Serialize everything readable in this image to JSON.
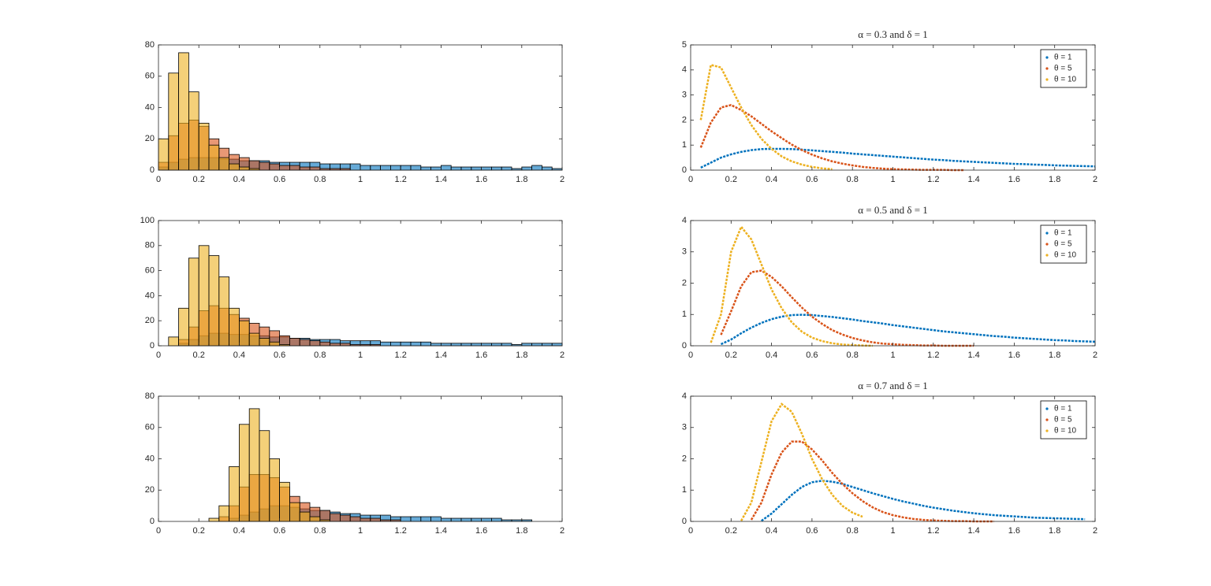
{
  "chart_data": [
    {
      "type": "histogram",
      "bins": [
        0,
        0.05,
        0.1,
        0.15,
        0.2,
        0.25,
        0.3,
        0.35,
        0.4,
        0.45,
        0.5,
        0.55,
        0.6,
        0.65,
        0.7,
        0.75,
        0.8,
        0.85,
        0.9,
        0.95,
        1,
        1.05,
        1.1,
        1.15,
        1.2,
        1.25,
        1.3,
        1.35,
        1.4,
        1.45,
        1.5,
        1.55,
        1.6,
        1.65,
        1.7,
        1.75,
        1.8,
        1.85,
        1.9,
        1.95,
        2
      ],
      "series": [
        {
          "color": "#0072bd",
          "values": [
            2,
            5,
            7,
            8,
            8,
            8,
            7,
            7,
            6,
            6,
            6,
            5,
            5,
            5,
            5,
            5,
            4,
            4,
            4,
            4,
            3,
            3,
            3,
            3,
            3,
            3,
            2,
            2,
            3,
            2,
            2,
            2,
            2,
            2,
            2,
            1,
            2,
            3,
            2,
            1
          ]
        },
        {
          "color": "#d95319",
          "values": [
            5,
            22,
            30,
            32,
            28,
            20,
            14,
            10,
            8,
            6,
            5,
            4,
            3,
            3,
            2,
            2,
            1,
            1,
            1,
            0,
            0,
            0,
            0,
            0,
            0,
            0,
            0,
            0,
            0,
            0,
            0,
            0,
            0,
            0,
            0,
            0,
            0,
            0,
            0,
            0
          ]
        },
        {
          "color": "#edb120",
          "values": [
            20,
            62,
            75,
            50,
            30,
            16,
            8,
            4,
            2,
            1,
            0,
            0,
            0,
            0,
            0,
            0,
            0,
            0,
            0,
            0,
            0,
            0,
            0,
            0,
            0,
            0,
            0,
            0,
            0,
            0,
            0,
            0,
            0,
            0,
            0,
            0,
            0,
            0,
            0,
            0
          ]
        }
      ],
      "xlim": [
        0,
        2
      ],
      "ylim": [
        0,
        80
      ],
      "xticks": [
        0,
        0.2,
        0.4,
        0.6,
        0.8,
        1,
        1.2,
        1.4,
        1.6,
        1.8,
        2
      ],
      "yticks": [
        0,
        20,
        40,
        60,
        80
      ]
    },
    {
      "type": "line",
      "title": "α = 0.3 and δ = 1",
      "x": [
        0.05,
        0.1,
        0.15,
        0.2,
        0.25,
        0.3,
        0.35,
        0.4,
        0.45,
        0.5,
        0.55,
        0.6,
        0.65,
        0.7,
        0.75,
        0.8,
        0.85,
        0.9,
        0.95,
        1,
        1.05,
        1.1,
        1.15,
        1.2,
        1.25,
        1.3,
        1.35,
        1.4,
        1.45,
        1.5,
        1.55,
        1.6,
        1.65,
        1.7,
        1.75,
        1.8,
        1.85,
        1.9,
        1.95,
        2
      ],
      "series": [
        {
          "name": "θ = 1",
          "color": "#0072bd",
          "values": [
            0.1,
            0.3,
            0.5,
            0.63,
            0.73,
            0.8,
            0.84,
            0.85,
            0.85,
            0.84,
            0.82,
            0.79,
            0.76,
            0.73,
            0.7,
            0.66,
            0.63,
            0.6,
            0.57,
            0.54,
            0.51,
            0.48,
            0.45,
            0.42,
            0.4,
            0.37,
            0.35,
            0.33,
            0.31,
            0.29,
            0.27,
            0.25,
            0.24,
            0.22,
            0.21,
            0.19,
            0.18,
            0.17,
            0.16,
            0.15
          ]
        },
        {
          "name": "θ = 5",
          "color": "#d95319",
          "values": [
            0.9,
            1.9,
            2.5,
            2.6,
            2.4,
            2.15,
            1.85,
            1.55,
            1.28,
            1.02,
            0.8,
            0.62,
            0.47,
            0.35,
            0.26,
            0.19,
            0.13,
            0.09,
            0.06,
            0.04,
            0.03,
            0.02,
            0.01,
            0.01,
            0.01,
            0,
            0,
            null,
            null,
            null,
            null,
            null,
            null,
            null,
            null,
            null,
            null,
            null,
            null,
            null
          ]
        },
        {
          "name": "θ = 10",
          "color": "#edb120",
          "values": [
            2,
            4.2,
            4.1,
            3.3,
            2.5,
            1.8,
            1.25,
            0.85,
            0.55,
            0.35,
            0.22,
            0.13,
            0.07,
            0.04,
            null,
            null,
            null,
            null,
            null,
            null,
            null,
            null,
            null,
            null,
            null,
            null,
            null,
            null,
            null,
            null,
            null,
            null,
            null,
            null,
            null,
            null,
            null,
            null,
            null,
            null
          ]
        }
      ],
      "xlim": [
        0,
        2
      ],
      "ylim": [
        0,
        5
      ],
      "xticks": [
        0,
        0.2,
        0.4,
        0.6,
        0.8,
        1,
        1.2,
        1.4,
        1.6,
        1.8,
        2
      ],
      "yticks": [
        0,
        1,
        2,
        3,
        4,
        5
      ],
      "legend": "upper right"
    },
    {
      "type": "histogram",
      "bins": [
        0,
        0.05,
        0.1,
        0.15,
        0.2,
        0.25,
        0.3,
        0.35,
        0.4,
        0.45,
        0.5,
        0.55,
        0.6,
        0.65,
        0.7,
        0.75,
        0.8,
        0.85,
        0.9,
        0.95,
        1,
        1.05,
        1.1,
        1.15,
        1.2,
        1.25,
        1.3,
        1.35,
        1.4,
        1.45,
        1.5,
        1.55,
        1.6,
        1.65,
        1.7,
        1.75,
        1.8,
        1.85,
        1.9,
        1.95,
        2
      ],
      "series": [
        {
          "color": "#0072bd",
          "values": [
            0,
            0,
            2,
            5,
            8,
            10,
            10,
            9,
            9,
            8,
            8,
            7,
            7,
            6,
            6,
            5,
            5,
            5,
            4,
            4,
            4,
            4,
            3,
            3,
            3,
            3,
            3,
            2,
            2,
            2,
            2,
            2,
            2,
            2,
            2,
            1,
            2,
            2,
            2,
            2
          ]
        },
        {
          "color": "#d95319",
          "values": [
            0,
            0,
            5,
            15,
            28,
            32,
            30,
            25,
            22,
            18,
            15,
            12,
            8,
            6,
            5,
            4,
            3,
            2,
            2,
            1,
            1,
            1,
            0,
            0,
            0,
            0,
            0,
            0,
            0,
            0,
            0,
            0,
            0,
            0,
            0,
            0,
            0,
            0,
            0,
            0
          ]
        },
        {
          "color": "#edb120",
          "values": [
            0,
            7,
            30,
            70,
            80,
            72,
            55,
            30,
            20,
            10,
            6,
            3,
            1,
            0,
            0,
            0,
            0,
            0,
            0,
            0,
            0,
            0,
            0,
            0,
            0,
            0,
            0,
            0,
            0,
            0,
            0,
            0,
            0,
            0,
            0,
            0,
            0,
            0,
            0,
            0
          ]
        }
      ],
      "xlim": [
        0,
        2
      ],
      "ylim": [
        0,
        100
      ],
      "xticks": [
        0,
        0.2,
        0.4,
        0.6,
        0.8,
        1,
        1.2,
        1.4,
        1.6,
        1.8,
        2
      ],
      "yticks": [
        0,
        20,
        40,
        60,
        80,
        100
      ]
    },
    {
      "type": "line",
      "title": "α = 0.5 and δ = 1",
      "x": [
        0.05,
        0.1,
        0.15,
        0.2,
        0.25,
        0.3,
        0.35,
        0.4,
        0.45,
        0.5,
        0.55,
        0.6,
        0.65,
        0.7,
        0.75,
        0.8,
        0.85,
        0.9,
        0.95,
        1,
        1.05,
        1.1,
        1.15,
        1.2,
        1.25,
        1.3,
        1.35,
        1.4,
        1.45,
        1.5,
        1.55,
        1.6,
        1.65,
        1.7,
        1.75,
        1.8,
        1.85,
        1.9,
        1.95,
        2
      ],
      "series": [
        {
          "name": "θ = 1",
          "color": "#0072bd",
          "values": [
            null,
            null,
            0.05,
            0.2,
            0.4,
            0.58,
            0.73,
            0.85,
            0.93,
            0.98,
            0.99,
            0.98,
            0.95,
            0.92,
            0.88,
            0.84,
            0.79,
            0.75,
            0.71,
            0.66,
            0.62,
            0.58,
            0.54,
            0.5,
            0.46,
            0.43,
            0.4,
            0.37,
            0.34,
            0.31,
            0.29,
            0.26,
            0.24,
            0.22,
            0.2,
            0.18,
            0.17,
            0.15,
            0.14,
            0.13
          ]
        },
        {
          "name": "θ = 5",
          "color": "#d95319",
          "values": [
            null,
            null,
            0.35,
            1.1,
            1.9,
            2.35,
            2.4,
            2.2,
            1.9,
            1.55,
            1.22,
            0.93,
            0.7,
            0.5,
            0.36,
            0.25,
            0.17,
            0.11,
            0.07,
            0.05,
            0.03,
            0.02,
            0.01,
            0.01,
            0,
            0,
            0,
            0,
            null,
            null,
            null,
            null,
            null,
            null,
            null,
            null,
            null,
            null,
            null,
            null
          ]
        },
        {
          "name": "θ = 10",
          "color": "#edb120",
          "values": [
            null,
            0.1,
            1,
            3,
            3.8,
            3.4,
            2.6,
            1.8,
            1.2,
            0.75,
            0.45,
            0.26,
            0.15,
            0.08,
            0.04,
            0.02,
            0.01,
            0,
            null,
            null,
            null,
            null,
            null,
            null,
            null,
            null,
            null,
            null,
            null,
            null,
            null,
            null,
            null,
            null,
            null,
            null,
            null,
            null,
            null,
            null
          ]
        }
      ],
      "xlim": [
        0,
        2
      ],
      "ylim": [
        0,
        4
      ],
      "xticks": [
        0,
        0.2,
        0.4,
        0.6,
        0.8,
        1,
        1.2,
        1.4,
        1.6,
        1.8,
        2
      ],
      "yticks": [
        0,
        1,
        2,
        3,
        4
      ],
      "legend": "upper right"
    },
    {
      "type": "histogram",
      "bins": [
        0,
        0.05,
        0.1,
        0.15,
        0.2,
        0.25,
        0.3,
        0.35,
        0.4,
        0.45,
        0.5,
        0.55,
        0.6,
        0.65,
        0.7,
        0.75,
        0.8,
        0.85,
        0.9,
        0.95,
        1,
        1.05,
        1.1,
        1.15,
        1.2,
        1.25,
        1.3,
        1.35,
        1.4,
        1.45,
        1.5,
        1.55,
        1.6,
        1.65,
        1.7,
        1.75,
        1.8,
        1.85,
        1.9,
        1.95,
        2
      ],
      "series": [
        {
          "color": "#0072bd",
          "values": [
            0,
            0,
            0,
            0,
            0,
            0,
            0,
            2,
            4,
            6,
            8,
            10,
            10,
            9,
            8,
            7,
            7,
            6,
            5,
            5,
            4,
            4,
            4,
            3,
            3,
            3,
            3,
            3,
            2,
            2,
            2,
            2,
            2,
            2,
            1,
            1,
            1,
            0,
            0,
            0
          ]
        },
        {
          "color": "#d95319",
          "values": [
            0,
            0,
            0,
            0,
            0,
            0,
            3,
            10,
            22,
            30,
            30,
            28,
            22,
            16,
            12,
            9,
            7,
            5,
            4,
            3,
            2,
            2,
            1,
            1,
            0,
            0,
            0,
            0,
            0,
            0,
            0,
            0,
            0,
            0,
            0,
            0,
            0,
            0,
            0,
            0
          ]
        },
        {
          "color": "#edb120",
          "values": [
            0,
            0,
            0,
            0,
            0,
            2,
            10,
            35,
            62,
            72,
            58,
            40,
            25,
            12,
            6,
            3,
            1,
            0,
            0,
            0,
            0,
            0,
            0,
            0,
            0,
            0,
            0,
            0,
            0,
            0,
            0,
            0,
            0,
            0,
            0,
            0,
            0,
            0,
            0,
            0
          ]
        }
      ],
      "xlim": [
        0,
        2
      ],
      "ylim": [
        0,
        80
      ],
      "xticks": [
        0,
        0.2,
        0.4,
        0.6,
        0.8,
        1,
        1.2,
        1.4,
        1.6,
        1.8,
        2
      ],
      "yticks": [
        0,
        20,
        40,
        60,
        80
      ]
    },
    {
      "type": "line",
      "title": "α = 0.7 and δ = 1",
      "x": [
        0.05,
        0.1,
        0.15,
        0.2,
        0.25,
        0.3,
        0.35,
        0.4,
        0.45,
        0.5,
        0.55,
        0.6,
        0.65,
        0.7,
        0.75,
        0.8,
        0.85,
        0.9,
        0.95,
        1,
        1.05,
        1.1,
        1.15,
        1.2,
        1.25,
        1.3,
        1.35,
        1.4,
        1.45,
        1.5,
        1.55,
        1.6,
        1.65,
        1.7,
        1.75,
        1.8,
        1.85,
        1.9,
        1.95,
        2
      ],
      "series": [
        {
          "name": "θ = 1",
          "color": "#0072bd",
          "values": [
            null,
            null,
            null,
            null,
            null,
            null,
            0.02,
            0.25,
            0.55,
            0.85,
            1.1,
            1.25,
            1.3,
            1.27,
            1.2,
            1.1,
            1,
            0.9,
            0.81,
            0.72,
            0.64,
            0.57,
            0.5,
            0.44,
            0.39,
            0.34,
            0.3,
            0.26,
            0.23,
            0.2,
            0.18,
            0.16,
            0.14,
            0.12,
            0.11,
            0.1,
            0.09,
            0.08,
            0.07,
            null
          ]
        },
        {
          "name": "θ = 5",
          "color": "#d95319",
          "values": [
            null,
            null,
            null,
            null,
            null,
            0.05,
            0.6,
            1.5,
            2.2,
            2.55,
            2.55,
            2.3,
            1.95,
            1.55,
            1.2,
            0.9,
            0.65,
            0.45,
            0.3,
            0.2,
            0.13,
            0.08,
            0.05,
            0.03,
            0.02,
            0.01,
            0.01,
            0,
            0,
            0,
            null,
            null,
            null,
            null,
            null,
            null,
            null,
            null,
            null,
            null
          ]
        },
        {
          "name": "θ = 10",
          "color": "#edb120",
          "values": [
            null,
            null,
            null,
            null,
            0.02,
            0.6,
            1.9,
            3.2,
            3.75,
            3.5,
            2.8,
            2,
            1.35,
            0.85,
            0.5,
            0.28,
            0.15,
            null,
            null,
            null,
            null,
            null,
            null,
            null,
            null,
            null,
            null,
            null,
            null,
            null,
            null,
            null,
            null,
            null,
            null,
            null,
            null,
            null,
            null,
            null
          ]
        }
      ],
      "xlim": [
        0,
        2
      ],
      "ylim": [
        0,
        4
      ],
      "xticks": [
        0,
        0.2,
        0.4,
        0.6,
        0.8,
        1,
        1.2,
        1.4,
        1.6,
        1.8,
        2
      ],
      "yticks": [
        0,
        1,
        2,
        3,
        4
      ],
      "legend": "upper right"
    }
  ]
}
